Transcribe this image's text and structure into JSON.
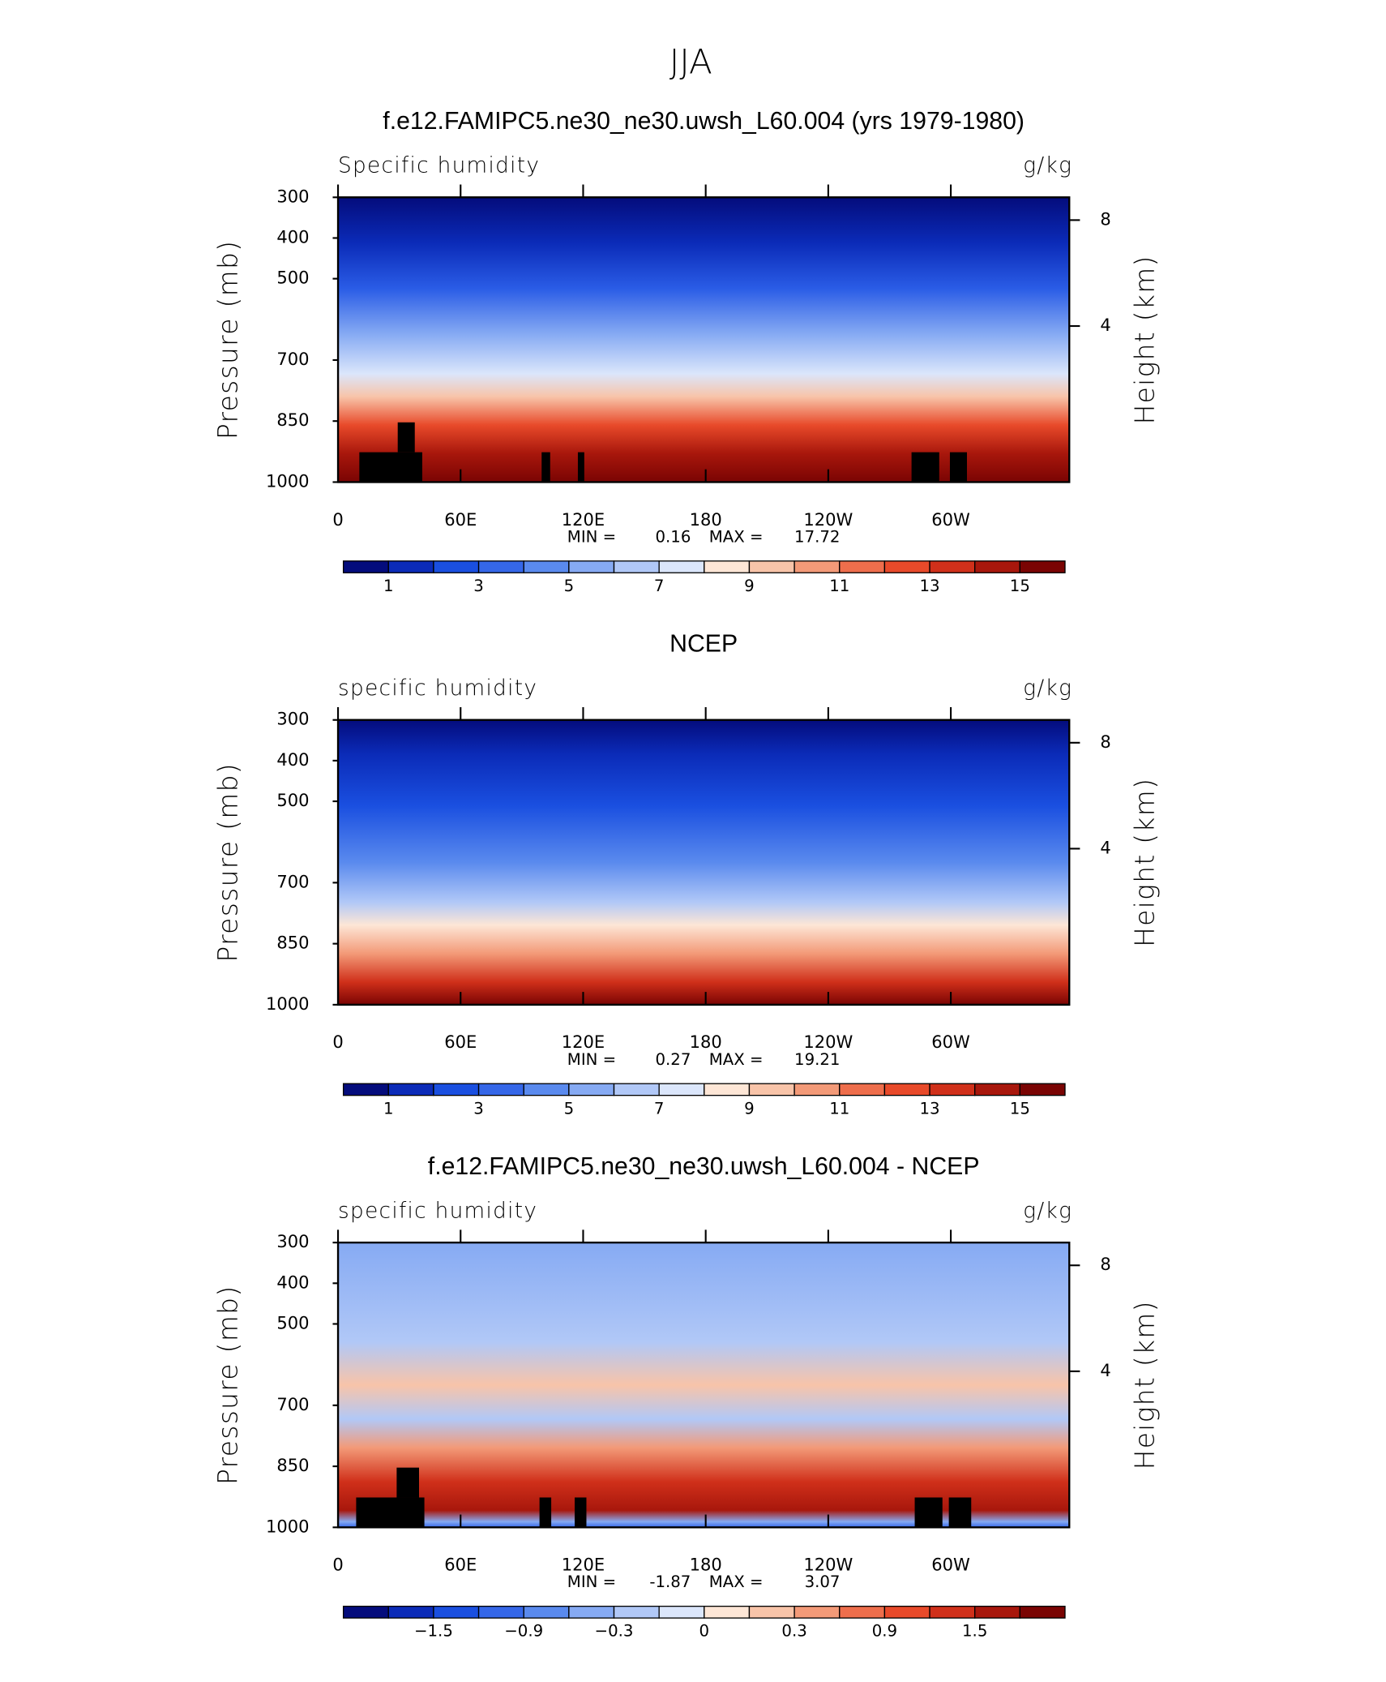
{
  "suptitle": "JJA",
  "chart_data": [
    {
      "type": "contour",
      "title": "f.e12.FAMIPC5.ne30_ne30.uwsh_L60.004 (yrs 1979-1980)",
      "left_label": "Specific humidity",
      "right_label": "g/kg",
      "ylabel": "Pressure (mb)",
      "y2label": "Height (km)",
      "ylim": [
        1000,
        300
      ],
      "yticks": [
        300,
        400,
        500,
        700,
        850,
        1000
      ],
      "y2ticks": [
        8,
        4
      ],
      "xlim": [
        0,
        358
      ],
      "xticks": [
        0,
        {
          "value": 60,
          "label": "60E"
        },
        {
          "value": 120,
          "label": "120E"
        },
        180,
        {
          "value": 240,
          "label": "120W"
        },
        {
          "value": 300,
          "label": "60W"
        }
      ],
      "min_label": "MIN =",
      "min": 0.16,
      "max_label": "MAX =",
      "max": 17.72,
      "colorbar": {
        "colors": [
          "#040c7c",
          "#0b2bb8",
          "#1a4fe0",
          "#3567e8",
          "#5a8aee",
          "#86aaf3",
          "#b1c8f7",
          "#dbe6fb",
          "#fde6d6",
          "#f8c4a9",
          "#f39a78",
          "#ee6e4c",
          "#e84a2a",
          "#d0301a",
          "#a8170c",
          "#7a0403"
        ],
        "ticks": [
          1,
          3,
          5,
          7,
          9,
          11,
          13,
          15
        ]
      }
    },
    {
      "type": "contour",
      "title": "NCEP",
      "left_label": "specific humidity",
      "right_label": "g/kg",
      "ylabel": "Pressure (mb)",
      "y2label": "Height (km)",
      "ylim": [
        1000,
        300
      ],
      "yticks": [
        300,
        400,
        500,
        700,
        850,
        1000
      ],
      "y2ticks": [
        8,
        4
      ],
      "xlim": [
        0,
        358
      ],
      "xticks": [
        0,
        {
          "value": 60,
          "label": "60E"
        },
        {
          "value": 120,
          "label": "120E"
        },
        180,
        {
          "value": 240,
          "label": "120W"
        },
        {
          "value": 300,
          "label": "60W"
        }
      ],
      "min_label": "MIN =",
      "min": 0.27,
      "max_label": "MAX =",
      "max": 19.21,
      "colorbar": {
        "colors": [
          "#040c7c",
          "#0b2bb8",
          "#1a4fe0",
          "#3567e8",
          "#5a8aee",
          "#86aaf3",
          "#b1c8f7",
          "#dbe6fb",
          "#fde6d6",
          "#f8c4a9",
          "#f39a78",
          "#ee6e4c",
          "#e84a2a",
          "#d0301a",
          "#a8170c",
          "#7a0403"
        ],
        "ticks": [
          1,
          3,
          5,
          7,
          9,
          11,
          13,
          15
        ]
      }
    },
    {
      "type": "contour",
      "title": "f.e12.FAMIPC5.ne30_ne30.uwsh_L60.004 - NCEP",
      "left_label": "specific humidity",
      "right_label": "g/kg",
      "ylabel": "Pressure (mb)",
      "y2label": "Height (km)",
      "ylim": [
        1000,
        300
      ],
      "yticks": [
        300,
        400,
        500,
        700,
        850,
        1000
      ],
      "y2ticks": [
        8,
        4
      ],
      "xlim": [
        0,
        358
      ],
      "xticks": [
        0,
        {
          "value": 60,
          "label": "60E"
        },
        {
          "value": 120,
          "label": "120E"
        },
        180,
        {
          "value": 240,
          "label": "120W"
        },
        {
          "value": 300,
          "label": "60W"
        }
      ],
      "min_label": "MIN =",
      "min": -1.87,
      "max_label": "MAX =",
      "max": 3.07,
      "colorbar": {
        "colors": [
          "#040c7c",
          "#0b2bb8",
          "#1a4fe0",
          "#3567e8",
          "#5a8aee",
          "#86aaf3",
          "#b1c8f7",
          "#dbe6fb",
          "#fde6d6",
          "#f8c4a9",
          "#f39a78",
          "#ee6e4c",
          "#e84a2a",
          "#d0301a",
          "#a8170c",
          "#7a0403"
        ],
        "ticks": [
          {
            "value": -1.5,
            "label": "−1.5"
          },
          {
            "value": -0.9,
            "label": "−0.9"
          },
          {
            "value": -0.3,
            "label": "−0.3"
          },
          0,
          0.3,
          0.9,
          1.5
        ]
      }
    }
  ]
}
